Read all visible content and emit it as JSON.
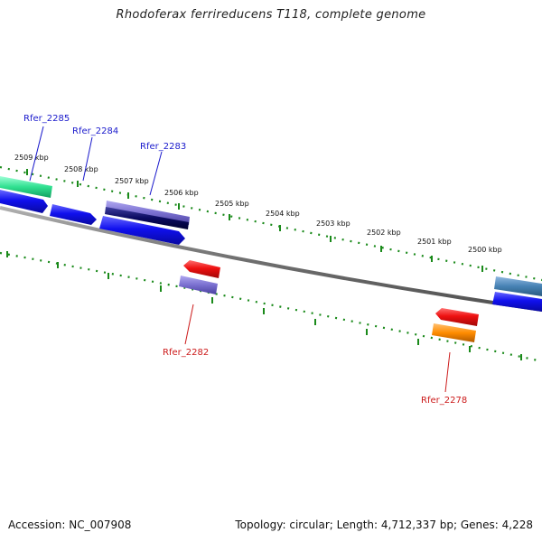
{
  "title": "Rhodoferax ferrireducens T118, complete genome",
  "footer": {
    "accession": "Accession: NC_007908",
    "summary": "Topology: circular; Length: 4,712,337 bp; Genes: 4,228"
  },
  "ticks": [
    "2509 kbp",
    "2508 kbp",
    "2507 kbp",
    "2506 kbp",
    "2505 kbp",
    "2504 kbp",
    "2503 kbp",
    "2502 kbp",
    "2501 kbp",
    "2500 kbp"
  ],
  "gene_labels": [
    {
      "name": "Rfer_2285",
      "color": "#1a1acc"
    },
    {
      "name": "Rfer_2284",
      "color": "#1a1acc"
    },
    {
      "name": "Rfer_2283",
      "color": "#1a1acc"
    },
    {
      "name": "Rfer_2282",
      "color": "#cc1a1a"
    },
    {
      "name": "Rfer_2278",
      "color": "#cc1a1a"
    }
  ],
  "colors": {
    "backbone": "#808080",
    "ticks": "#1a8a1a",
    "forward_gene": "#1010ee",
    "reverse_gene": "#ee1010",
    "orange_gene": "#ff8c00",
    "purple_gene": "#7a70d0",
    "teal_gene": "#30e090",
    "steel_gene": "#4682b4"
  }
}
